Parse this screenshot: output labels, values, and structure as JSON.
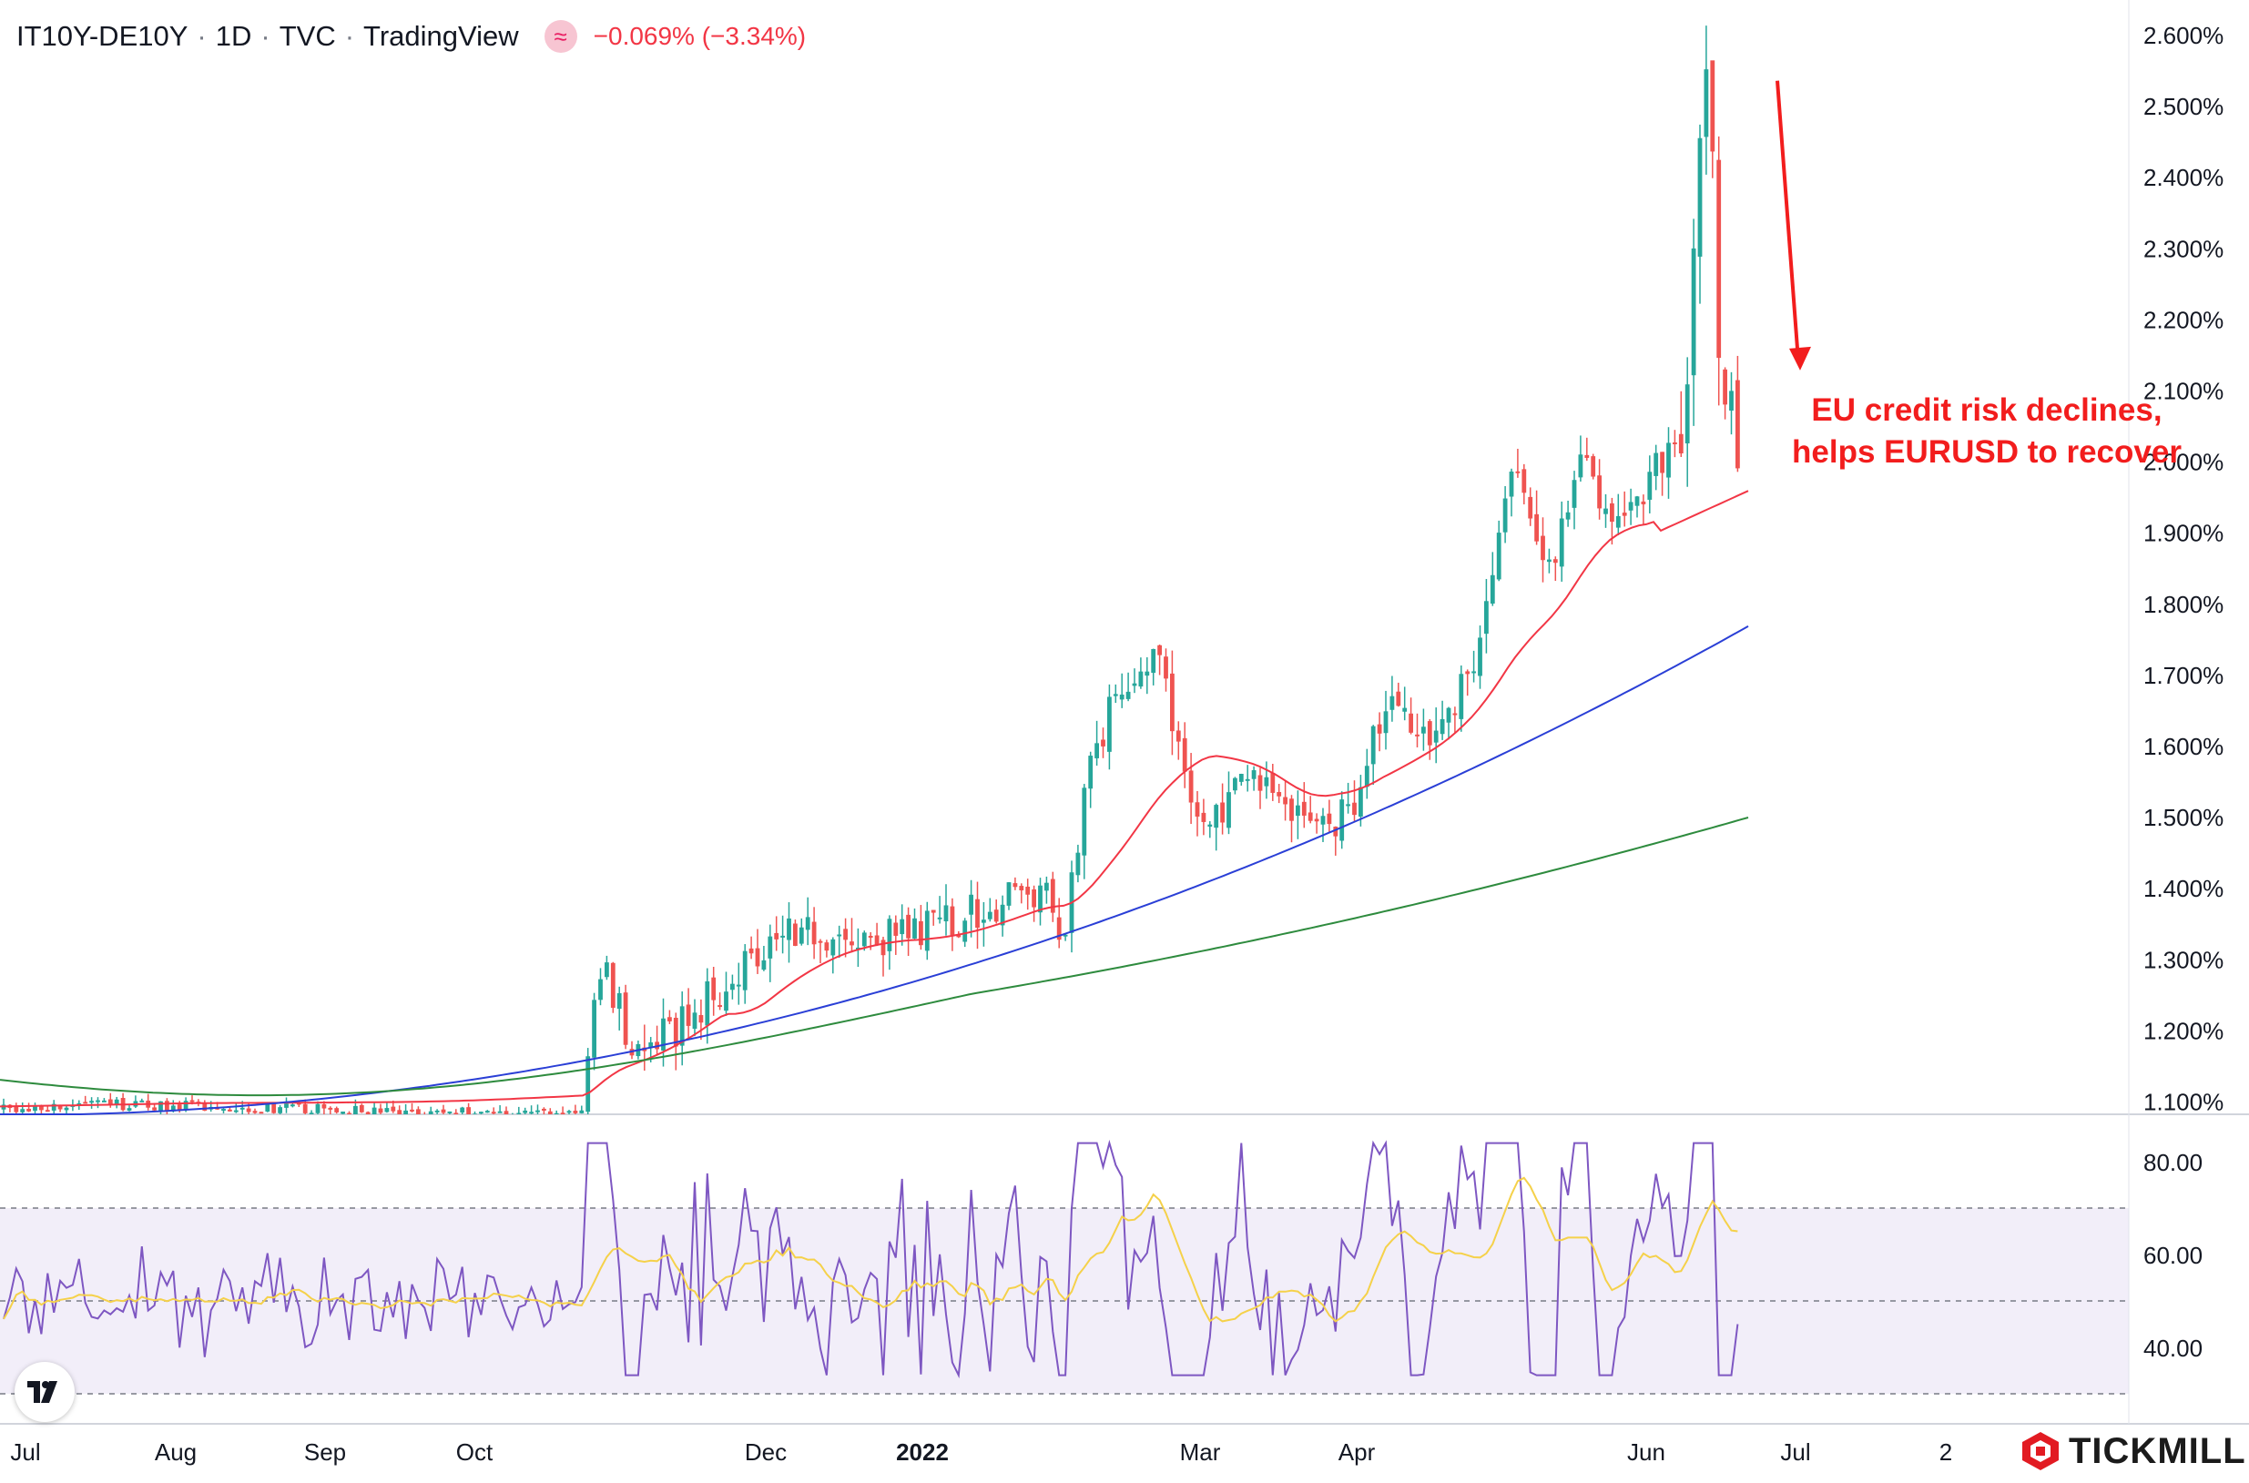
{
  "header": {
    "symbol": "IT10Y-DE10Y",
    "interval": "1D",
    "exchange": "TVC",
    "source": "TradingView",
    "change": "−0.069% (−3.34%)"
  },
  "annotation": {
    "line1": "EU credit risk declines,",
    "line2": "helps EURUSD to recover"
  },
  "brand": "TICKMILL",
  "colors": {
    "up": "#26a69a",
    "down": "#ef5350",
    "ma_fast": "#f23645",
    "ma_mid": "#2a3fd6",
    "ma_slow": "#2e8b3e",
    "rsi": "#7e57c2",
    "rsi_ma": "#f5d14a",
    "annotation": "#f21d1d"
  },
  "chart_data": [
    {
      "type": "candlestick",
      "title": "",
      "y_axis_position": "right",
      "ylim": [
        1.08,
        2.64
      ],
      "y_unit": "%",
      "y_ticks": [
        "2.600%",
        "2.500%",
        "2.400%",
        "2.300%",
        "2.200%",
        "2.100%",
        "2.000%",
        "1.900%",
        "1.800%",
        "1.700%",
        "1.600%",
        "1.500%",
        "1.400%",
        "1.300%",
        "1.200%",
        "1.100%"
      ],
      "x_ticks": [
        "Jul",
        "Aug",
        "Sep",
        "Oct",
        "Dec",
        "2022",
        "Mar",
        "Apr",
        "Jun",
        "Jul",
        "2"
      ],
      "x_ticks_bold": [
        "2022"
      ],
      "moving_averages": [
        {
          "color_key": "ma_fast",
          "start": 1.1,
          "end": 1.96
        },
        {
          "color_key": "ma_mid",
          "start": 1.08,
          "end": 1.77
        },
        {
          "color_key": "ma_slow",
          "start": 1.13,
          "end": 1.5
        }
      ],
      "key_levels": {
        "start_close": 1.09,
        "peak_high": 2.53,
        "last_close": 1.99
      },
      "annotation_arrow": {
        "from": 2.53,
        "to": 2.12
      }
    },
    {
      "type": "line",
      "title": "",
      "indicator": "RSI",
      "ylim": [
        26,
        86
      ],
      "y_ticks": [
        "80.00",
        "60.00",
        "40.00"
      ],
      "bands": {
        "upper": 70,
        "middle": 50,
        "lower": 30
      },
      "rsi_last": 45,
      "rsi_ma_last": 65
    }
  ]
}
